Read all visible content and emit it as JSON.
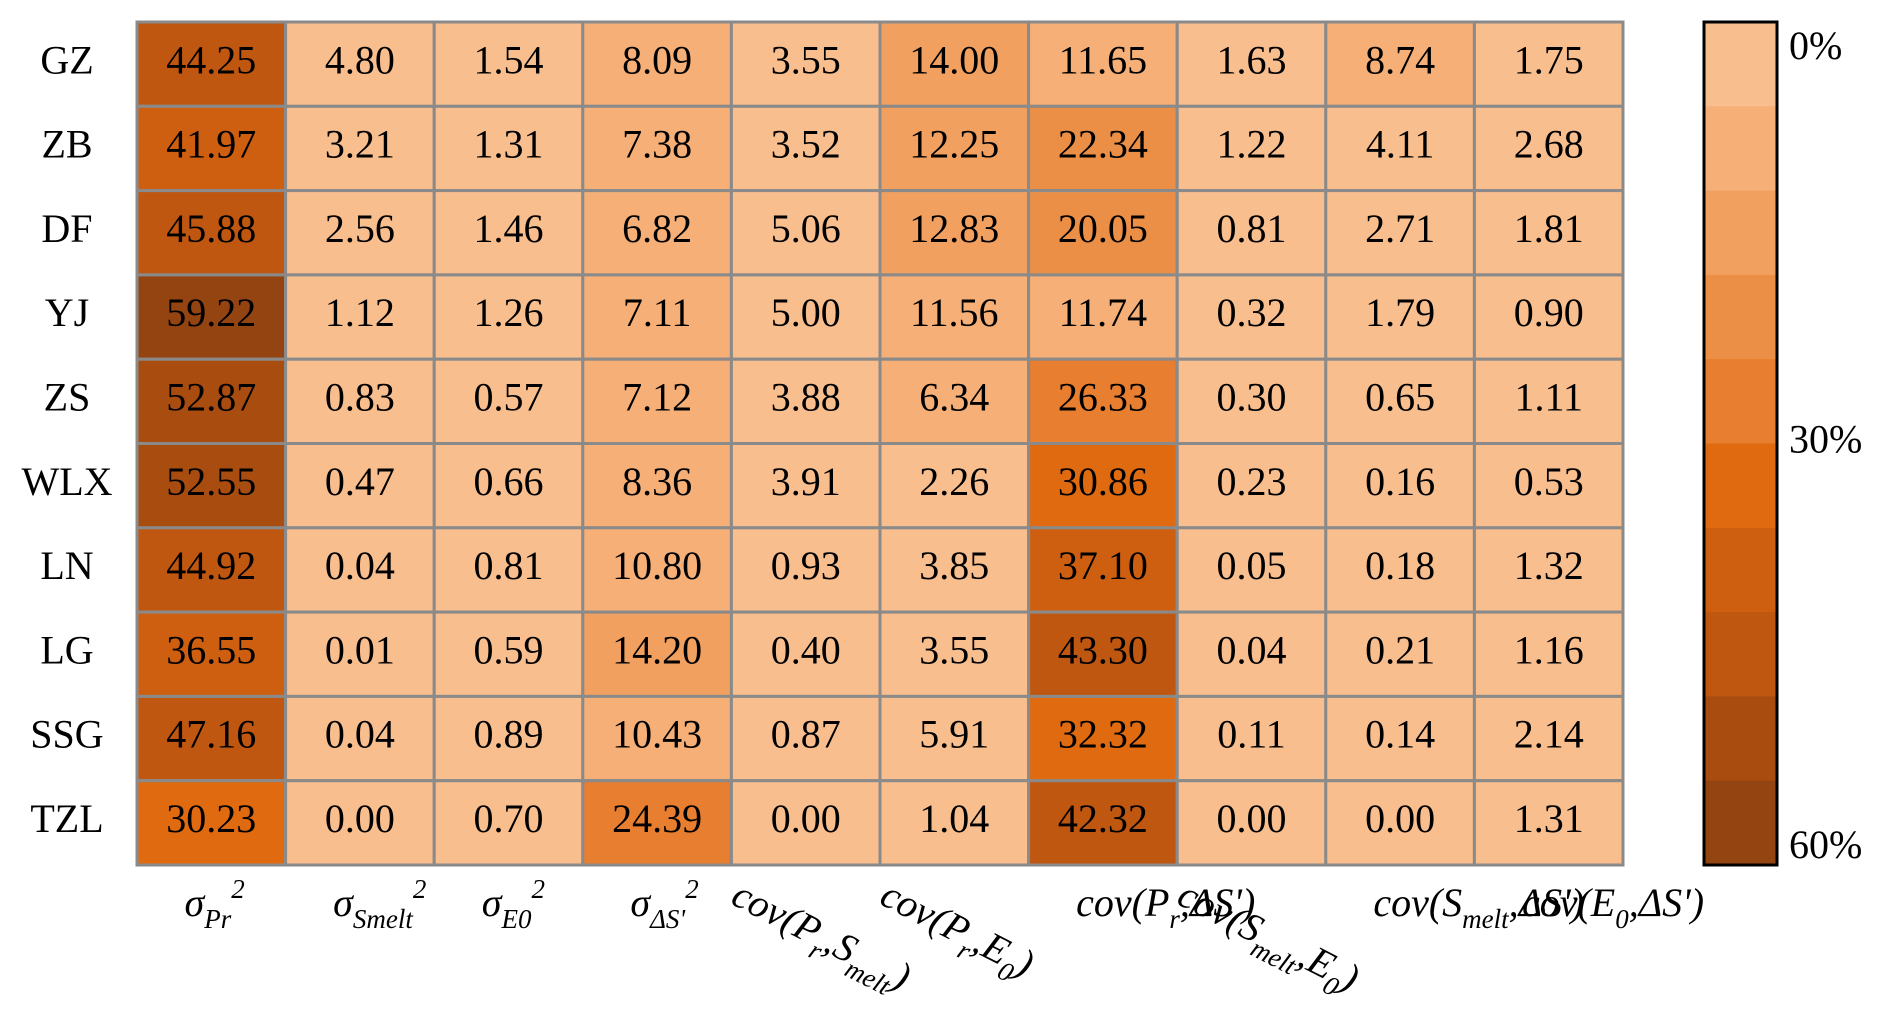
{
  "chart_data": {
    "type": "heatmap",
    "rows": [
      "GZ",
      "ZB",
      "DF",
      "YJ",
      "ZS",
      "WLX",
      "LN",
      "LG",
      "SSG",
      "TZL"
    ],
    "columns": [
      [
        {
          "text": "σ"
        },
        {
          "text": "Pr",
          "shift": "sub"
        },
        {
          "text": "2",
          "shift": "super"
        }
      ],
      [
        {
          "text": "σ"
        },
        {
          "text": "Smelt",
          "shift": "sub"
        },
        {
          "text": "2",
          "shift": "super"
        }
      ],
      [
        {
          "text": "σ"
        },
        {
          "text": "E0",
          "shift": "sub"
        },
        {
          "text": "2",
          "shift": "super"
        }
      ],
      [
        {
          "text": "σ"
        },
        {
          "text": "ΔS'",
          "shift": "sub"
        },
        {
          "text": "2",
          "shift": "super"
        }
      ],
      [
        {
          "text": "cov(P"
        },
        {
          "text": "r",
          "shift": "sub"
        },
        {
          "text": ",S"
        },
        {
          "text": "melt",
          "shift": "sub"
        },
        {
          "text": ")"
        }
      ],
      [
        {
          "text": "cov(P"
        },
        {
          "text": "r",
          "shift": "sub"
        },
        {
          "text": ",E"
        },
        {
          "text": "0",
          "shift": "sub"
        },
        {
          "text": ")"
        }
      ],
      [
        {
          "text": "cov(P"
        },
        {
          "text": "r",
          "shift": "sub"
        },
        {
          "text": ",ΔS')"
        }
      ],
      [
        {
          "text": "cov(S"
        },
        {
          "text": "melt",
          "shift": "sub"
        },
        {
          "text": ",E"
        },
        {
          "text": "0",
          "shift": "sub"
        },
        {
          "text": ")"
        }
      ],
      [
        {
          "text": "cov(S"
        },
        {
          "text": "melt",
          "shift": "sub"
        },
        {
          "text": ",ΔS')"
        }
      ],
      [
        {
          "text": "cov(E"
        },
        {
          "text": "0",
          "shift": "sub"
        },
        {
          "text": ",ΔS')"
        }
      ]
    ],
    "values": [
      [
        44.25,
        4.8,
        1.54,
        8.09,
        3.55,
        14.0,
        11.65,
        1.63,
        8.74,
        1.75
      ],
      [
        41.97,
        3.21,
        1.31,
        7.38,
        3.52,
        12.25,
        22.34,
        1.22,
        4.11,
        2.68
      ],
      [
        45.88,
        2.56,
        1.46,
        6.82,
        5.06,
        12.83,
        20.05,
        0.81,
        2.71,
        1.81
      ],
      [
        59.22,
        1.12,
        1.26,
        7.11,
        5.0,
        11.56,
        11.74,
        0.32,
        1.79,
        0.9
      ],
      [
        52.87,
        0.83,
        0.57,
        7.12,
        3.88,
        6.34,
        26.33,
        0.3,
        0.65,
        1.11
      ],
      [
        52.55,
        0.47,
        0.66,
        8.36,
        3.91,
        2.26,
        30.86,
        0.23,
        0.16,
        0.53
      ],
      [
        44.92,
        0.04,
        0.81,
        10.8,
        0.93,
        3.85,
        37.1,
        0.05,
        0.18,
        1.32
      ],
      [
        36.55,
        0.01,
        0.59,
        14.2,
        0.4,
        3.55,
        43.3,
        0.04,
        0.21,
        1.16
      ],
      [
        47.16,
        0.04,
        0.89,
        10.43,
        0.87,
        5.91,
        32.32,
        0.11,
        0.14,
        2.14
      ],
      [
        30.23,
        0.0,
        0.7,
        24.39,
        0.0,
        1.04,
        42.32,
        0.0,
        0.0,
        1.31
      ]
    ],
    "value_labels": [
      [
        "44.25",
        "4.80",
        "1.54",
        "8.09",
        "3.55",
        "14.00",
        "11.65",
        "1.63",
        "8.74",
        "1.75"
      ],
      [
        "41.97",
        "3.21",
        "1.31",
        "7.38",
        "3.52",
        "12.25",
        "22.34",
        "1.22",
        "4.11",
        "2.68"
      ],
      [
        "45.88",
        "2.56",
        "1.46",
        "6.82",
        "5.06",
        "12.83",
        "20.05",
        "0.81",
        "2.71",
        "1.81"
      ],
      [
        "59.22",
        "1.12",
        "1.26",
        "7.11",
        "5.00",
        "11.56",
        "11.74",
        "0.32",
        "1.79",
        "0.90"
      ],
      [
        "52.87",
        "0.83",
        "0.57",
        "7.12",
        "3.88",
        "6.34",
        "26.33",
        "0.30",
        "0.65",
        "1.11"
      ],
      [
        "52.55",
        "0.47",
        "0.66",
        "8.36",
        "3.91",
        "2.26",
        "30.86",
        "0.23",
        "0.16",
        "0.53"
      ],
      [
        "44.92",
        "0.04",
        "0.81",
        "10.80",
        "0.93",
        "3.85",
        "37.10",
        "0.05",
        "0.18",
        "1.32"
      ],
      [
        "36.55",
        "0.01",
        "0.59",
        "14.20",
        "0.40",
        "3.55",
        "43.30",
        "0.04",
        "0.21",
        "1.16"
      ],
      [
        "47.16",
        "0.04",
        "0.89",
        "10.43",
        "0.87",
        "5.91",
        "32.32",
        "0.11",
        "0.14",
        "2.14"
      ],
      [
        "30.23",
        "0.00",
        "0.70",
        "24.39",
        "0.00",
        "1.04",
        "42.32",
        "0.00",
        "0.00",
        "1.31"
      ]
    ],
    "clim": [
      0,
      60
    ],
    "colors": [
      "#f9be8e",
      "#f5af77",
      "#f1a060",
      "#ec8f46",
      "#e87e2f",
      "#e06a10",
      "#cf5f10",
      "#bf5711",
      "#a84d0f",
      "#944410"
    ],
    "cticks": [
      {
        "value": 0,
        "label": "0%"
      },
      {
        "value": 30,
        "label": "30%"
      },
      {
        "value": 60,
        "label": "60%"
      }
    ]
  }
}
